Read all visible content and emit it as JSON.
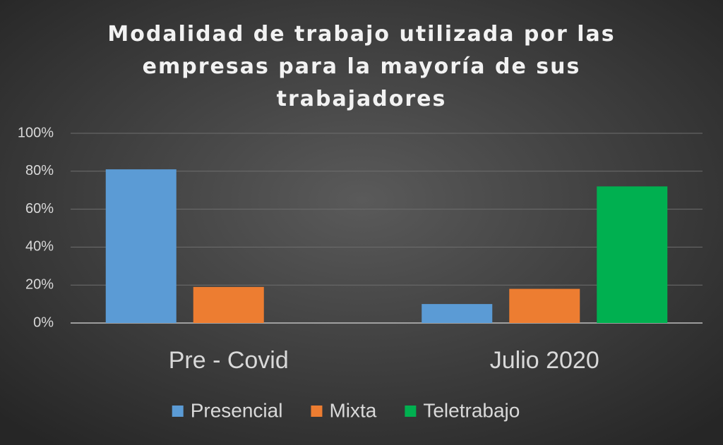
{
  "chart_data": {
    "type": "bar",
    "title": "Modalidad de trabajo utilizada por las empresas para la mayoría de sus trabajadores",
    "categories": [
      "Pre - Covid",
      "Julio 2020"
    ],
    "series": [
      {
        "name": "Presencial",
        "color": "#5b9bd5",
        "values": [
          81,
          10
        ]
      },
      {
        "name": "Mixta",
        "color": "#ed7d31",
        "values": [
          19,
          18
        ]
      },
      {
        "name": "Teletrabajo",
        "color": "#00b050",
        "values": [
          0,
          72
        ]
      }
    ],
    "ylim": [
      0,
      100
    ],
    "yticks": [
      {
        "value": 0,
        "label": "0%"
      },
      {
        "value": 20,
        "label": "20%"
      },
      {
        "value": 40,
        "label": "40%"
      },
      {
        "value": 60,
        "label": "60%"
      },
      {
        "value": 80,
        "label": "80%"
      },
      {
        "value": 100,
        "label": "100%"
      }
    ],
    "grid": true,
    "legend": "bottom"
  }
}
